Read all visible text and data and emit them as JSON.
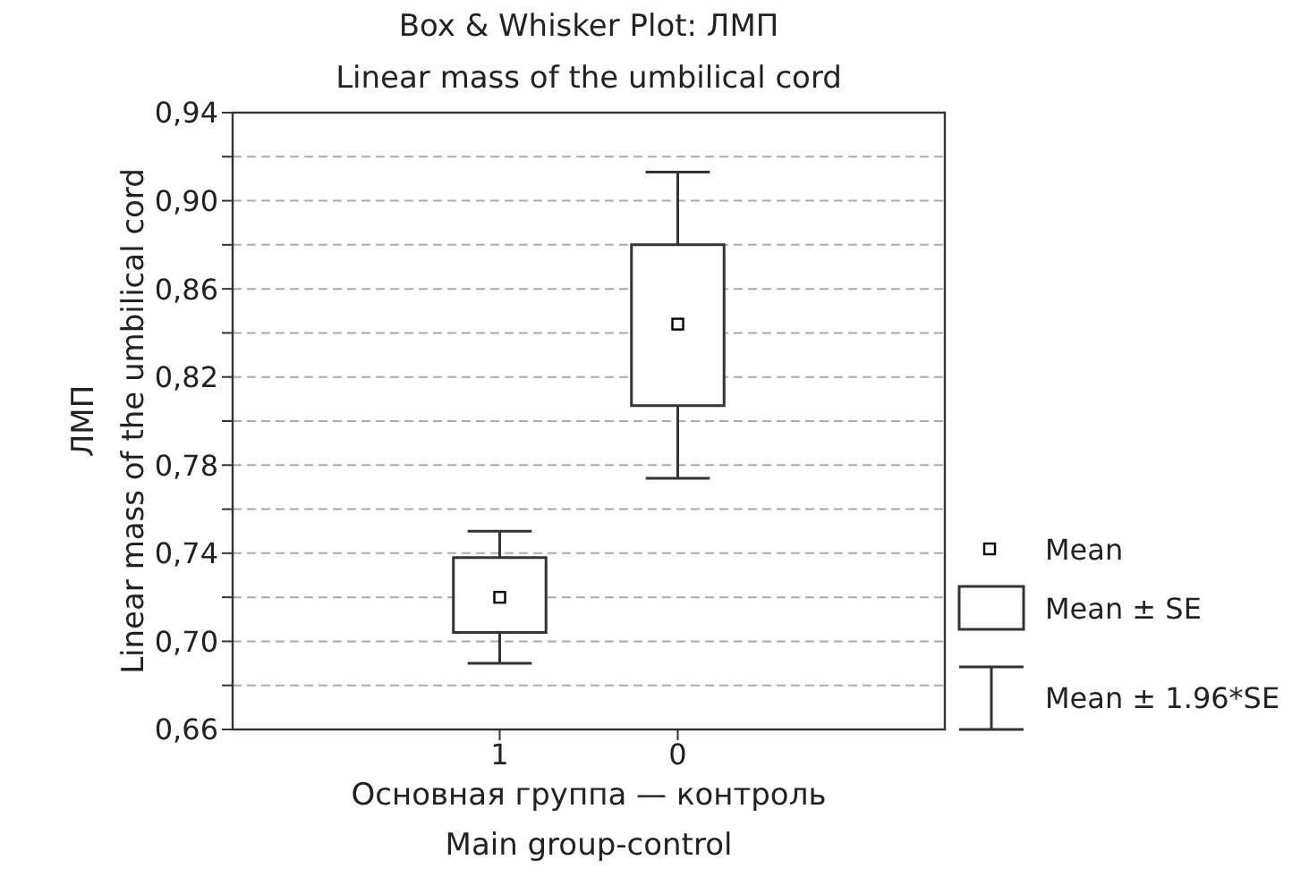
{
  "chart_data": {
    "type": "box",
    "title": "Box & Whisker Plot: ЛМП",
    "subtitle": "Linear mass of the umbilical cord",
    "xlabel": "Основная группа — контроль\nMain group-control",
    "ylabel": "ЛМП\nLinear mass of the umbilical cord",
    "categories": [
      "1",
      "0"
    ],
    "boxes": [
      {
        "low": 0.69,
        "q1": 0.704,
        "q3": 0.738,
        "high": 0.75,
        "mean": 0.72
      },
      {
        "low": 0.774,
        "q1": 0.807,
        "q3": 0.88,
        "high": 0.913,
        "mean": 0.844
      }
    ],
    "ylim": [
      0.66,
      0.94
    ],
    "yticks": [
      {
        "value": 0.66,
        "label": "0,66"
      },
      {
        "value": 0.68,
        "label": null
      },
      {
        "value": 0.7,
        "label": "0,70"
      },
      {
        "value": 0.72,
        "label": null
      },
      {
        "value": 0.74,
        "label": "0,74"
      },
      {
        "value": 0.76,
        "label": null
      },
      {
        "value": 0.78,
        "label": "0,78"
      },
      {
        "value": 0.8,
        "label": null
      },
      {
        "value": 0.82,
        "label": "0,82"
      },
      {
        "value": 0.84,
        "label": null
      },
      {
        "value": 0.86,
        "label": "0,86"
      },
      {
        "value": 0.88,
        "label": null
      },
      {
        "value": 0.9,
        "label": "0,90"
      },
      {
        "value": 0.92,
        "label": null
      },
      {
        "value": 0.94,
        "label": "0,94"
      }
    ],
    "grid": "y",
    "marker": "square",
    "annotations": [
      "Mean",
      "Mean ± SE",
      "Mean ± 1.96*SE"
    ]
  }
}
